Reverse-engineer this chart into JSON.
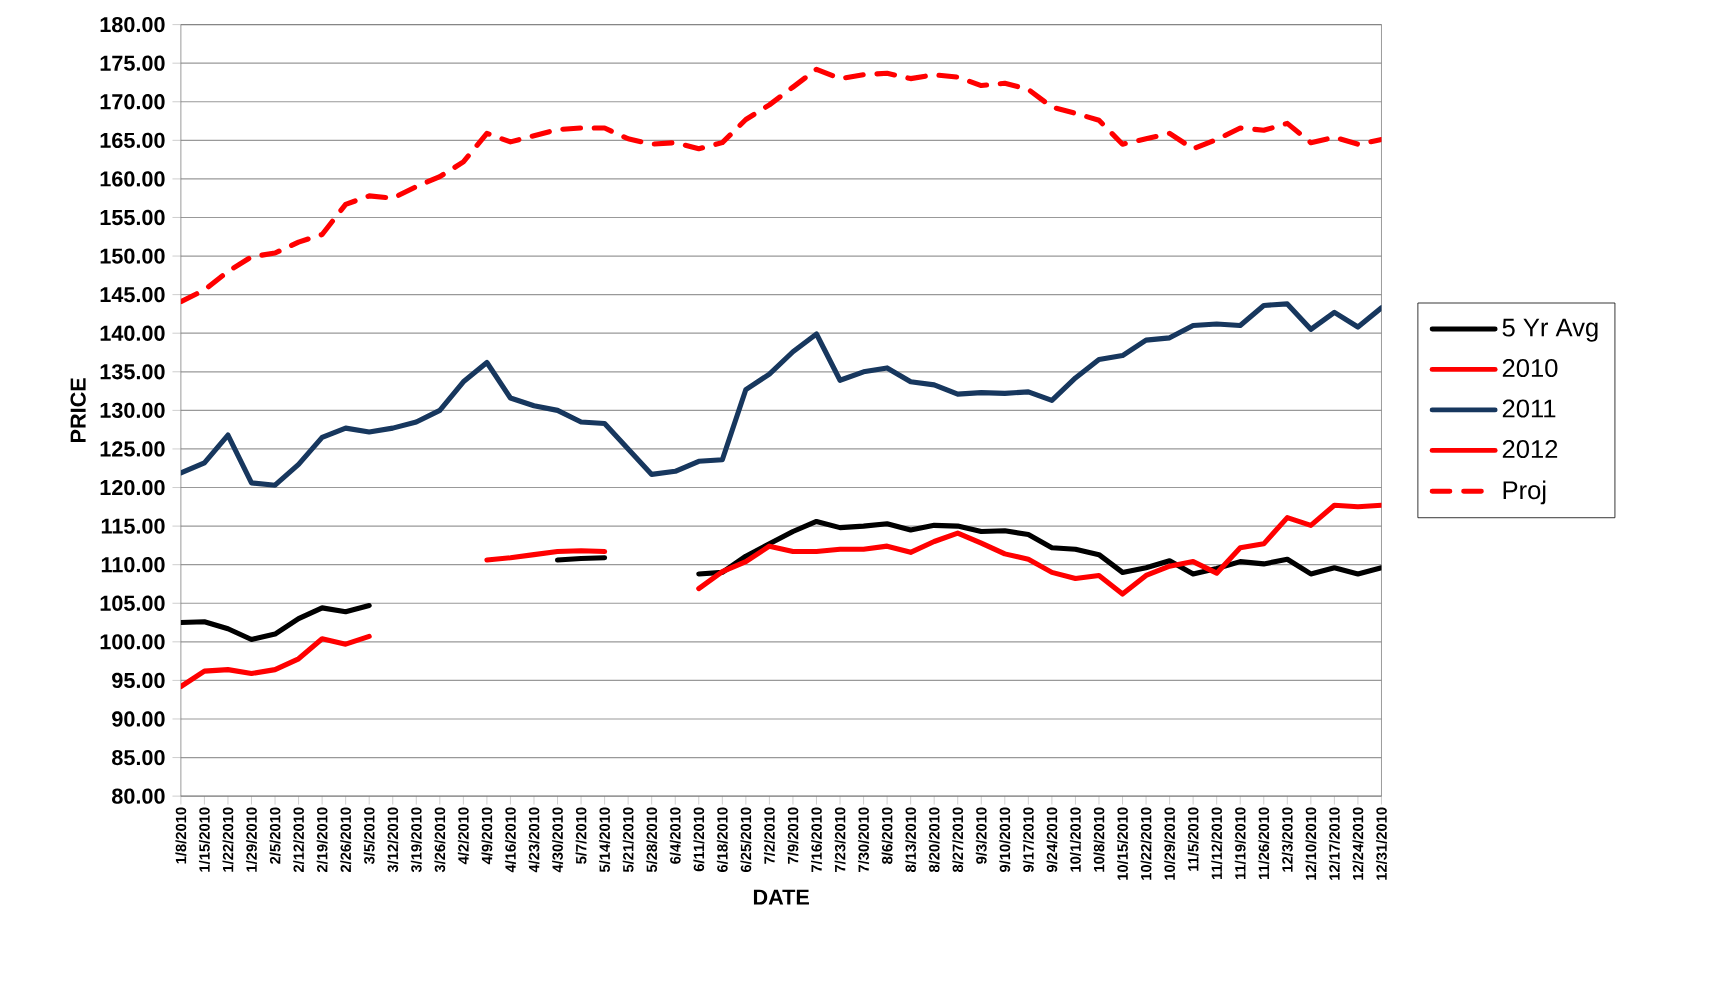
{
  "chart_data": {
    "type": "line",
    "xlabel": "DATE",
    "ylabel": "PRICE",
    "categories": [
      "1/8/2010",
      "1/15/2010",
      "1/22/2010",
      "1/29/2010",
      "2/5/2010",
      "2/12/2010",
      "2/19/2010",
      "2/26/2010",
      "3/5/2010",
      "3/12/2010",
      "3/19/2010",
      "3/26/2010",
      "4/2/2010",
      "4/9/2010",
      "4/16/2010",
      "4/23/2010",
      "4/30/2010",
      "5/7/2010",
      "5/14/2010",
      "5/21/2010",
      "5/28/2010",
      "6/4/2010",
      "6/11/2010",
      "6/18/2010",
      "6/25/2010",
      "7/2/2010",
      "7/9/2010",
      "7/16/2010",
      "7/23/2010",
      "7/30/2010",
      "8/6/2010",
      "8/13/2010",
      "8/20/2010",
      "8/27/2010",
      "9/3/2010",
      "9/10/2010",
      "9/17/2010",
      "9/24/2010",
      "10/1/2010",
      "10/8/2010",
      "10/15/2010",
      "10/22/2010",
      "10/29/2010",
      "11/5/2010",
      "11/12/2010",
      "11/19/2010",
      "11/26/2010",
      "12/3/2010",
      "12/10/2010",
      "12/17/2010",
      "12/24/2010",
      "12/31/2010"
    ],
    "series": [
      {
        "name": "5 Yr Avg",
        "color": "#000000",
        "values": [
          102.5,
          102.6,
          101.7,
          100.3,
          101.0,
          103.0,
          104.4,
          103.9,
          104.7,
          null,
          null,
          null,
          null,
          null,
          null,
          null,
          110.6,
          110.8,
          110.9,
          null,
          null,
          null,
          108.8,
          109.0,
          111.1,
          112.7,
          114.3,
          115.6,
          114.8,
          115.0,
          115.3,
          114.5,
          115.1,
          115.0,
          114.3,
          114.4,
          113.9,
          112.2,
          112.0,
          111.3,
          109.0,
          109.6,
          110.5,
          108.8,
          109.5,
          110.4,
          110.1,
          110.7,
          108.8,
          109.6,
          108.8,
          109.6
        ]
      },
      {
        "name": "2010",
        "color": "#ff0000",
        "values": [
          94.2,
          96.2,
          96.4,
          95.9,
          96.4,
          97.8,
          100.4,
          99.7,
          100.7,
          null,
          null,
          null,
          null,
          110.6,
          110.9,
          111.3,
          111.7,
          111.8,
          111.7,
          null,
          null,
          null,
          106.9,
          109.1,
          110.4,
          112.4,
          111.7,
          111.7,
          112.0,
          112.0,
          112.4,
          111.6,
          113.0,
          114.1,
          112.8,
          111.4,
          110.7,
          109.0,
          108.2,
          108.6,
          106.2,
          108.6,
          109.8,
          110.4,
          108.9,
          112.2,
          112.7,
          116.1,
          115.1,
          117.7,
          117.5,
          117.7
        ]
      },
      {
        "name": "2011",
        "color": "#17375e",
        "values": [
          121.9,
          123.2,
          126.8,
          120.6,
          120.3,
          123.0,
          126.5,
          127.7,
          127.2,
          127.7,
          128.5,
          130.0,
          133.7,
          136.2,
          131.6,
          130.6,
          130.0,
          128.5,
          128.3,
          125.0,
          121.7,
          122.1,
          123.4,
          123.6,
          132.7,
          134.7,
          137.6,
          139.9,
          133.9,
          135.0,
          135.5,
          133.7,
          133.3,
          132.1,
          132.3,
          132.2,
          132.4,
          131.3,
          134.2,
          136.6,
          137.1,
          139.1,
          139.4,
          141.0,
          141.2,
          141.0,
          143.6,
          143.8,
          140.5,
          142.7,
          140.8,
          143.3
        ]
      },
      {
        "name": "2012",
        "color": "#ff0000",
        "values": [
          null,
          null,
          null,
          null,
          null,
          null,
          null,
          null,
          null,
          null,
          null,
          null,
          null,
          null,
          null,
          null,
          null,
          null,
          null,
          null,
          null,
          null,
          null,
          null,
          null,
          null,
          null,
          null,
          null,
          null,
          null,
          null,
          null,
          null,
          null,
          null,
          null,
          null,
          null,
          null,
          null,
          null,
          null,
          null,
          null,
          null,
          null,
          null,
          null,
          null,
          null,
          null
        ]
      },
      {
        "name": "Proj",
        "color": "#ff0000",
        "line_style": "dashed",
        "values": [
          144.1,
          145.6,
          148.0,
          149.9,
          150.4,
          151.8,
          152.8,
          156.7,
          157.8,
          157.5,
          159.0,
          160.3,
          162.2,
          165.9,
          164.8,
          165.6,
          166.4,
          166.6,
          166.6,
          165.2,
          164.5,
          164.7,
          163.9,
          164.7,
          167.7,
          169.6,
          171.9,
          174.2,
          173.0,
          173.5,
          173.7,
          173.0,
          173.5,
          173.2,
          172.1,
          172.4,
          171.6,
          169.3,
          168.5,
          167.6,
          164.5,
          165.2,
          165.9,
          163.9,
          165.1,
          166.6,
          166.3,
          167.2,
          164.7,
          165.4,
          164.5,
          165.1
        ]
      }
    ],
    "ylim": [
      80,
      180
    ],
    "yticks": [
      {
        "value": 80,
        "label": "80.00"
      },
      {
        "value": 85,
        "label": "85.00"
      },
      {
        "value": 90,
        "label": "90.00"
      },
      {
        "value": 95,
        "label": "95.00"
      },
      {
        "value": 100,
        "label": "100.00"
      },
      {
        "value": 105,
        "label": "105.00"
      },
      {
        "value": 110,
        "label": "110.00"
      },
      {
        "value": 115,
        "label": "115.00"
      },
      {
        "value": 120,
        "label": "120.00"
      },
      {
        "value": 125,
        "label": "125.00"
      },
      {
        "value": 130,
        "label": "130.00"
      },
      {
        "value": 135,
        "label": "135.00"
      },
      {
        "value": 140,
        "label": "140.00"
      },
      {
        "value": 145,
        "label": "145.00"
      },
      {
        "value": 150,
        "label": "150.00"
      },
      {
        "value": 155,
        "label": "155.00"
      },
      {
        "value": 160,
        "label": "160.00"
      },
      {
        "value": 165,
        "label": "165.00"
      },
      {
        "value": 170,
        "label": "170.00"
      },
      {
        "value": 175,
        "label": "175.00"
      },
      {
        "value": 180,
        "label": "180.00"
      }
    ],
    "grid": "y",
    "legend": "right",
    "marker": "none",
    "line_style": "solid"
  }
}
